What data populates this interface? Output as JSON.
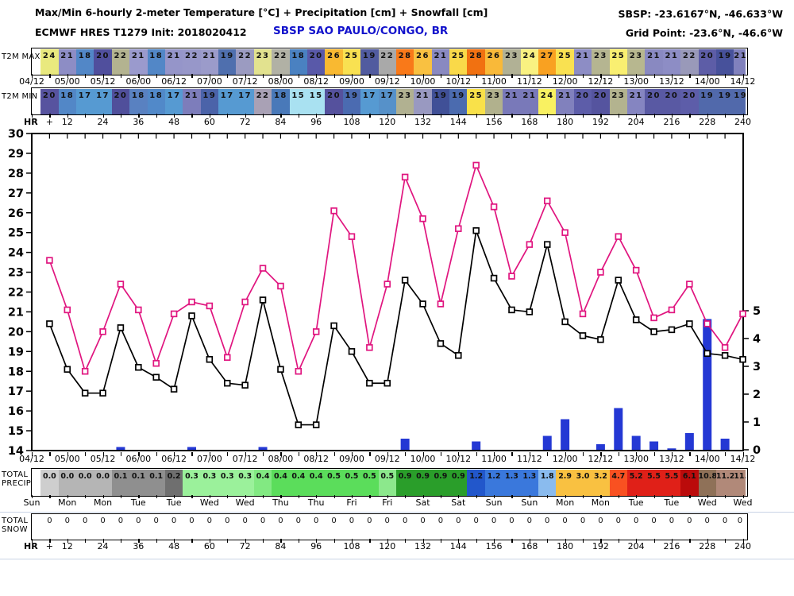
{
  "header": {
    "title": "Max/Min 6-hourly 2-meter Temperature [°C] + Precipitation [cm] + Snowfall [cm]",
    "station_coords": "SBSP: -23.6167°N, -46.633°W",
    "model_line": "ECMWF HRES T1279 Init: 2018020412",
    "station_name": "SBSP SAO PAULO/CONGO, BR",
    "grid_point": "Grid Point: -23.6°N, -46.6°W",
    "station_color": "#1212cc"
  },
  "labels": {
    "t2m_max": "T2M MAX",
    "t2m_min": "T2M MIN",
    "total": "TOTAL",
    "precip": "PRECIP",
    "snow": "SNOW",
    "hr": "HR",
    "hr_plus": "+"
  },
  "x_dates": [
    "04/12",
    "05/00",
    "05/12",
    "06/00",
    "06/12",
    "07/00",
    "07/12",
    "08/00",
    "08/12",
    "09/00",
    "09/12",
    "10/00",
    "10/12",
    "11/00",
    "11/12",
    "12/00",
    "12/12",
    "13/00",
    "13/12",
    "14/00",
    "14/12"
  ],
  "hours": [
    "+",
    "12",
    "24",
    "36",
    "48",
    "60",
    "72",
    "84",
    "96",
    "108",
    "120",
    "132",
    "144",
    "156",
    "168",
    "180",
    "192",
    "204",
    "216",
    "228",
    "240"
  ],
  "days": [
    "Sun",
    "Mon",
    "Mon",
    "Tue",
    "Tue",
    "Wed",
    "Wed",
    "Thu",
    "Thu",
    "Fri",
    "Fri",
    "Sat",
    "Sat",
    "Sun",
    "Sun",
    "Mon",
    "Mon",
    "Tue",
    "Tue",
    "Wed",
    "Wed"
  ],
  "strips": {
    "t2m_max": {
      "cells": [
        {
          "v": "24",
          "c": "#e9e97e"
        },
        {
          "v": "21",
          "c": "#8d8dc5"
        },
        {
          "v": "18",
          "c": "#5287c7"
        },
        {
          "v": "20",
          "c": "#504f9d"
        },
        {
          "v": "22",
          "c": "#b3b390"
        },
        {
          "v": "21",
          "c": "#9a9acd"
        },
        {
          "v": "18",
          "c": "#5287c7"
        },
        {
          "v": "21",
          "c": "#9595c9"
        },
        {
          "v": "22",
          "c": "#9797c9"
        },
        {
          "v": "21",
          "c": "#9b9bca"
        },
        {
          "v": "19",
          "c": "#4f6fae"
        },
        {
          "v": "22",
          "c": "#9b9bc1"
        },
        {
          "v": "23",
          "c": "#e2e28f"
        },
        {
          "v": "22",
          "c": "#b1b1a5"
        },
        {
          "v": "18",
          "c": "#4a81c1"
        },
        {
          "v": "20",
          "c": "#5959a9"
        },
        {
          "v": "26",
          "c": "#f9b931"
        },
        {
          "v": "25",
          "c": "#f9e151"
        },
        {
          "v": "19",
          "c": "#515b9f"
        },
        {
          "v": "22",
          "c": "#a9a9a9"
        },
        {
          "v": "28",
          "c": "#f97919"
        },
        {
          "v": "26",
          "c": "#f9c141"
        },
        {
          "v": "21",
          "c": "#8989c1"
        },
        {
          "v": "25",
          "c": "#f9d949"
        },
        {
          "v": "28",
          "c": "#f17111"
        },
        {
          "v": "26",
          "c": "#f9b939"
        },
        {
          "v": "23",
          "c": "#b1b195"
        },
        {
          "v": "24",
          "c": "#f9f181"
        },
        {
          "v": "27",
          "c": "#f9a121"
        },
        {
          "v": "25",
          "c": "#f9e151"
        },
        {
          "v": "21",
          "c": "#8d8dc5"
        },
        {
          "v": "23",
          "c": "#b5b591"
        },
        {
          "v": "25",
          "c": "#f9ef71"
        },
        {
          "v": "23",
          "c": "#b7b78f"
        },
        {
          "v": "21",
          "c": "#8989c1"
        },
        {
          "v": "21",
          "c": "#8d8dc5"
        },
        {
          "v": "22",
          "c": "#9999b9"
        },
        {
          "v": "20",
          "c": "#5d5da7"
        },
        {
          "v": "19",
          "c": "#47519b"
        },
        {
          "v": "21",
          "c": "#8181bd"
        }
      ]
    },
    "t2m_min": {
      "cells": [
        {
          "v": "20",
          "c": "#57539f"
        },
        {
          "v": "18",
          "c": "#5287c7"
        },
        {
          "v": "17",
          "c": "#569ad2"
        },
        {
          "v": "17",
          "c": "#569ad2"
        },
        {
          "v": "20",
          "c": "#504f9b"
        },
        {
          "v": "18",
          "c": "#5981c1"
        },
        {
          "v": "18",
          "c": "#5189c9"
        },
        {
          "v": "17",
          "c": "#569ad2"
        },
        {
          "v": "21",
          "c": "#7d7dbb"
        },
        {
          "v": "19",
          "c": "#4b63a9"
        },
        {
          "v": "17",
          "c": "#569ad2"
        },
        {
          "v": "17",
          "c": "#569ad2"
        },
        {
          "v": "22",
          "c": "#a9a1b5"
        },
        {
          "v": "18",
          "c": "#4979b9"
        },
        {
          "v": "15",
          "c": "#a9e1f1"
        },
        {
          "v": "15",
          "c": "#a9e1f1"
        },
        {
          "v": "20",
          "c": "#55519d"
        },
        {
          "v": "19",
          "c": "#4b6bb1"
        },
        {
          "v": "17",
          "c": "#569ad2"
        },
        {
          "v": "17",
          "c": "#5691c9"
        },
        {
          "v": "23",
          "c": "#b1b191"
        },
        {
          "v": "21",
          "c": "#9999c1"
        },
        {
          "v": "19",
          "c": "#405097"
        },
        {
          "v": "19",
          "c": "#4b6baf"
        },
        {
          "v": "25",
          "c": "#f9e149"
        },
        {
          "v": "23",
          "c": "#b1b18d"
        },
        {
          "v": "21",
          "c": "#7979b9"
        },
        {
          "v": "21",
          "c": "#7979b9"
        },
        {
          "v": "24",
          "c": "#f9f161"
        },
        {
          "v": "21",
          "c": "#8181bd"
        },
        {
          "v": "20",
          "c": "#5d5da9"
        },
        {
          "v": "20",
          "c": "#55549f"
        },
        {
          "v": "23",
          "c": "#b3b38f"
        },
        {
          "v": "21",
          "c": "#8585c1"
        },
        {
          "v": "20",
          "c": "#5959a3"
        },
        {
          "v": "20",
          "c": "#5959a3"
        },
        {
          "v": "20",
          "c": "#5d5da9"
        },
        {
          "v": "19",
          "c": "#5169ab"
        },
        {
          "v": "19",
          "c": "#5169ab"
        },
        {
          "v": "19",
          "c": "#5169ab"
        }
      ]
    },
    "total_precip": {
      "cells": [
        {
          "v": "0.0",
          "c": "#cecece"
        },
        {
          "v": "0.0",
          "c": "#b5b5b5"
        },
        {
          "v": "0.0",
          "c": "#b5b5b5"
        },
        {
          "v": "0.0",
          "c": "#b5b5b5"
        },
        {
          "v": "0.1",
          "c": "#8f8f8f"
        },
        {
          "v": "0.1",
          "c": "#8f8f8f"
        },
        {
          "v": "0.1",
          "c": "#8f8f8f"
        },
        {
          "v": "0.2",
          "c": "#6f6f6f"
        },
        {
          "v": "0.3",
          "c": "#9bf19b"
        },
        {
          "v": "0.3",
          "c": "#9bf19b"
        },
        {
          "v": "0.3",
          "c": "#9bf19b"
        },
        {
          "v": "0.3",
          "c": "#9bf19b"
        },
        {
          "v": "0.4",
          "c": "#82e982"
        },
        {
          "v": "0.4",
          "c": "#5bdd5b"
        },
        {
          "v": "0.4",
          "c": "#5bdd5b"
        },
        {
          "v": "0.4",
          "c": "#5bdd5b"
        },
        {
          "v": "0.5",
          "c": "#5bdd5b"
        },
        {
          "v": "0.5",
          "c": "#5bdd5b"
        },
        {
          "v": "0.5",
          "c": "#5bdd5b"
        },
        {
          "v": "0.5",
          "c": "#8ce88c"
        },
        {
          "v": "0.9",
          "c": "#2a9e2a"
        },
        {
          "v": "0.9",
          "c": "#2a9e2a"
        },
        {
          "v": "0.9",
          "c": "#2a9e2a"
        },
        {
          "v": "0.9",
          "c": "#2a9e2a"
        },
        {
          "v": "1.2",
          "c": "#2257cb"
        },
        {
          "v": "1.2",
          "c": "#3a78dc"
        },
        {
          "v": "1.3",
          "c": "#3a78dc"
        },
        {
          "v": "1.3",
          "c": "#3a78dc"
        },
        {
          "v": "1.8",
          "c": "#8abbee"
        },
        {
          "v": "2.9",
          "c": "#f9c141"
        },
        {
          "v": "3.0",
          "c": "#f9c141"
        },
        {
          "v": "3.2",
          "c": "#f9c141"
        },
        {
          "v": "4.7",
          "c": "#f95121"
        },
        {
          "v": "5.2",
          "c": "#e02018"
        },
        {
          "v": "5.5",
          "c": "#e02018"
        },
        {
          "v": "5.5",
          "c": "#e02018"
        },
        {
          "v": "6.1",
          "c": "#bb0b0b"
        },
        {
          "v": "10.8",
          "c": "#8f7158"
        },
        {
          "v": "11.2",
          "c": "#b18979"
        },
        {
          "v": "11.2",
          "c": "#b18979"
        }
      ]
    },
    "total_snow": {
      "cells": [
        {
          "v": "0",
          "c": "#ffffff"
        },
        {
          "v": "0",
          "c": "#ffffff"
        },
        {
          "v": "0",
          "c": "#ffffff"
        },
        {
          "v": "0",
          "c": "#ffffff"
        },
        {
          "v": "0",
          "c": "#ffffff"
        },
        {
          "v": "0",
          "c": "#ffffff"
        },
        {
          "v": "0",
          "c": "#ffffff"
        },
        {
          "v": "0",
          "c": "#ffffff"
        },
        {
          "v": "0",
          "c": "#ffffff"
        },
        {
          "v": "0",
          "c": "#ffffff"
        },
        {
          "v": "0",
          "c": "#ffffff"
        },
        {
          "v": "0",
          "c": "#ffffff"
        },
        {
          "v": "0",
          "c": "#ffffff"
        },
        {
          "v": "0",
          "c": "#ffffff"
        },
        {
          "v": "0",
          "c": "#ffffff"
        },
        {
          "v": "0",
          "c": "#ffffff"
        },
        {
          "v": "0",
          "c": "#ffffff"
        },
        {
          "v": "0",
          "c": "#ffffff"
        },
        {
          "v": "0",
          "c": "#ffffff"
        },
        {
          "v": "0",
          "c": "#ffffff"
        },
        {
          "v": "0",
          "c": "#ffffff"
        },
        {
          "v": "0",
          "c": "#ffffff"
        },
        {
          "v": "0",
          "c": "#ffffff"
        },
        {
          "v": "0",
          "c": "#ffffff"
        },
        {
          "v": "0",
          "c": "#ffffff"
        },
        {
          "v": "0",
          "c": "#ffffff"
        },
        {
          "v": "0",
          "c": "#ffffff"
        },
        {
          "v": "0",
          "c": "#ffffff"
        },
        {
          "v": "0",
          "c": "#ffffff"
        },
        {
          "v": "0",
          "c": "#ffffff"
        },
        {
          "v": "0",
          "c": "#ffffff"
        },
        {
          "v": "0",
          "c": "#ffffff"
        },
        {
          "v": "0",
          "c": "#ffffff"
        },
        {
          "v": "0",
          "c": "#ffffff"
        },
        {
          "v": "0",
          "c": "#ffffff"
        },
        {
          "v": "0",
          "c": "#ffffff"
        },
        {
          "v": "0",
          "c": "#ffffff"
        },
        {
          "v": "0",
          "c": "#ffffff"
        },
        {
          "v": "0",
          "c": "#ffffff"
        },
        {
          "v": "0",
          "c": "#ffffff"
        }
      ]
    }
  },
  "chart_data": {
    "type": "line",
    "note": "meteogram: two 6-hourly temperature lines + precipitation bars",
    "x_hours_step": 6,
    "x_hours_start": 6,
    "x_hours_end": 240,
    "x_labels": [
      "04/12",
      "05/00",
      "05/12",
      "06/00",
      "06/12",
      "07/00",
      "07/12",
      "08/00",
      "08/12",
      "09/00",
      "09/12",
      "10/00",
      "10/12",
      "11/00",
      "11/12",
      "12/00",
      "12/12",
      "13/00",
      "13/12",
      "14/00",
      "14/12"
    ],
    "temp_axis": {
      "min": 14,
      "max": 30,
      "ticks": [
        30,
        29,
        28,
        27,
        26,
        25,
        24,
        23,
        22,
        21,
        20,
        19,
        18,
        17,
        16,
        15,
        14
      ]
    },
    "precip_axis": {
      "min": 0,
      "max": 5,
      "ticks": [
        0,
        1,
        2,
        3,
        4,
        5
      ]
    },
    "series": [
      {
        "name": "T2M MAX 6-hourly",
        "color": "#e0157f",
        "values": [
          23.6,
          21.1,
          18.0,
          20.0,
          22.4,
          21.1,
          18.4,
          20.9,
          21.5,
          21.3,
          18.7,
          21.5,
          23.2,
          22.3,
          18.0,
          20.0,
          26.1,
          24.8,
          19.2,
          22.4,
          27.8,
          25.7,
          21.4,
          25.2,
          28.4,
          26.3,
          22.8,
          24.4,
          26.6,
          25.0,
          20.9,
          23.0,
          24.8,
          23.1,
          20.7,
          21.1,
          22.4,
          20.4,
          19.2,
          20.9
        ]
      },
      {
        "name": "T2M MIN 6-hourly",
        "color": "#000000",
        "values": [
          20.4,
          18.1,
          16.9,
          16.9,
          20.2,
          18.2,
          17.7,
          17.1,
          20.8,
          18.6,
          17.4,
          17.3,
          21.6,
          18.1,
          15.3,
          15.3,
          20.3,
          19.0,
          17.4,
          17.4,
          22.6,
          21.4,
          19.4,
          18.8,
          25.1,
          22.7,
          21.1,
          21.0,
          24.4,
          20.5,
          19.8,
          19.6,
          22.6,
          20.6,
          20.0,
          20.1,
          20.4,
          18.9,
          18.8,
          18.6
        ]
      }
    ],
    "precip_bars": {
      "name": "6h precipitation [cm]",
      "color": "#2438d4",
      "values": [
        0,
        0,
        0,
        0,
        0.1,
        0,
        0,
        0,
        0.1,
        0,
        0,
        0,
        0.1,
        0,
        0,
        0,
        0,
        0,
        0,
        0,
        0.4,
        0,
        0,
        0,
        0.3,
        0,
        0,
        0,
        0.5,
        1.1,
        0,
        0.2,
        1.5,
        0.5,
        0.3,
        0.05,
        0.6,
        4.7,
        0.4,
        0
      ]
    }
  }
}
